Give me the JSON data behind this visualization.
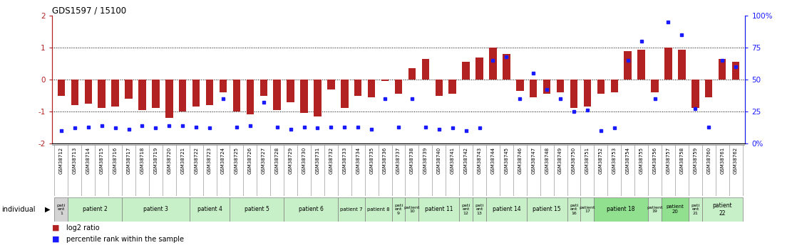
{
  "title": "GDS1597 / 15100",
  "gsm_labels": [
    "GSM38712",
    "GSM38713",
    "GSM38714",
    "GSM38715",
    "GSM38716",
    "GSM38717",
    "GSM38718",
    "GSM38719",
    "GSM38720",
    "GSM38721",
    "GSM38722",
    "GSM38723",
    "GSM38724",
    "GSM38725",
    "GSM38726",
    "GSM38727",
    "GSM38728",
    "GSM38729",
    "GSM38730",
    "GSM38731",
    "GSM38732",
    "GSM38733",
    "GSM38734",
    "GSM38735",
    "GSM38736",
    "GSM38737",
    "GSM38738",
    "GSM38739",
    "GSM38740",
    "GSM38741",
    "GSM38742",
    "GSM38743",
    "GSM38744",
    "GSM38745",
    "GSM38746",
    "GSM38747",
    "GSM38748",
    "GSM38749",
    "GSM38750",
    "GSM38751",
    "GSM38752",
    "GSM38753",
    "GSM38754",
    "GSM38755",
    "GSM38756",
    "GSM38757",
    "GSM38758",
    "GSM38759",
    "GSM38760",
    "GSM38761",
    "GSM38762"
  ],
  "log2_ratio": [
    -0.5,
    -0.8,
    -0.75,
    -0.9,
    -0.85,
    -0.6,
    -0.95,
    -0.9,
    -1.2,
    -1.0,
    -0.85,
    -0.8,
    -0.4,
    -1.0,
    -1.1,
    -0.5,
    -0.95,
    -0.7,
    -1.05,
    -1.15,
    -0.3,
    -0.9,
    -0.5,
    -0.55,
    -0.05,
    -0.45,
    0.35,
    0.65,
    -0.5,
    -0.45,
    0.55,
    0.7,
    1.0,
    0.8,
    -0.35,
    -0.55,
    -0.45,
    -0.4,
    -0.9,
    -0.85,
    -0.45,
    -0.4,
    0.9,
    0.95,
    -0.4,
    1.0,
    0.95,
    -0.9,
    -0.55,
    0.65,
    0.55
  ],
  "percentile": [
    10,
    12,
    13,
    14,
    12,
    11,
    14,
    12,
    14,
    14,
    13,
    12,
    35,
    13,
    14,
    32,
    13,
    11,
    13,
    12,
    13,
    13,
    13,
    11,
    35,
    13,
    35,
    13,
    11,
    12,
    10,
    12,
    65,
    68,
    35,
    55,
    42,
    35,
    25,
    26,
    10,
    12,
    65,
    80,
    35,
    95,
    85,
    27,
    13,
    65,
    60
  ],
  "patients": [
    {
      "label": "pati\nent\n1",
      "start": 0,
      "end": 1,
      "color": "#d4d4d4"
    },
    {
      "label": "patient 2",
      "start": 1,
      "end": 5,
      "color": "#c8f0c8"
    },
    {
      "label": "patient 3",
      "start": 5,
      "end": 10,
      "color": "#c8f0c8"
    },
    {
      "label": "patient 4",
      "start": 10,
      "end": 13,
      "color": "#c8f0c8"
    },
    {
      "label": "patient 5",
      "start": 13,
      "end": 17,
      "color": "#c8f0c8"
    },
    {
      "label": "patient 6",
      "start": 17,
      "end": 21,
      "color": "#c8f0c8"
    },
    {
      "label": "patient 7",
      "start": 21,
      "end": 23,
      "color": "#c8f0c8"
    },
    {
      "label": "patient 8",
      "start": 23,
      "end": 25,
      "color": "#c8f0c8"
    },
    {
      "label": "pati\nent\n9",
      "start": 25,
      "end": 26,
      "color": "#c8f0c8"
    },
    {
      "label": "patient\n10",
      "start": 26,
      "end": 27,
      "color": "#c8f0c8"
    },
    {
      "label": "patient 11",
      "start": 27,
      "end": 30,
      "color": "#c8f0c8"
    },
    {
      "label": "pati\nent\n12",
      "start": 30,
      "end": 31,
      "color": "#c8f0c8"
    },
    {
      "label": "pati\nent\n13",
      "start": 31,
      "end": 32,
      "color": "#c8f0c8"
    },
    {
      "label": "patient 14",
      "start": 32,
      "end": 35,
      "color": "#c8f0c8"
    },
    {
      "label": "patient 15",
      "start": 35,
      "end": 38,
      "color": "#c8f0c8"
    },
    {
      "label": "pati\nent\n16",
      "start": 38,
      "end": 39,
      "color": "#c8f0c8"
    },
    {
      "label": "patient\n17",
      "start": 39,
      "end": 40,
      "color": "#c8f0c8"
    },
    {
      "label": "patient 18",
      "start": 40,
      "end": 44,
      "color": "#90e090"
    },
    {
      "label": "patient\n19",
      "start": 44,
      "end": 45,
      "color": "#c8f0c8"
    },
    {
      "label": "patient\n20",
      "start": 45,
      "end": 47,
      "color": "#90e090"
    },
    {
      "label": "pati\nent\n21",
      "start": 47,
      "end": 48,
      "color": "#c8f0c8"
    },
    {
      "label": "patient\n22",
      "start": 48,
      "end": 51,
      "color": "#c8f0c8"
    }
  ],
  "bar_color": "#b22222",
  "dot_color": "#1a1aff",
  "ylim_left": [
    -2,
    2
  ],
  "ylim_right": [
    0,
    100
  ],
  "yticks_left": [
    -2,
    -1,
    0,
    1,
    2
  ],
  "ytick_labels_left": [
    "-2",
    "-1",
    "0",
    "1",
    "2"
  ],
  "yticks_right": [
    0,
    25,
    50,
    75,
    100
  ],
  "ytick_labels_right": [
    "0%",
    "25",
    "50",
    "75",
    "100%"
  ],
  "hlines": [
    -1,
    0,
    1
  ],
  "bar_width": 0.55
}
